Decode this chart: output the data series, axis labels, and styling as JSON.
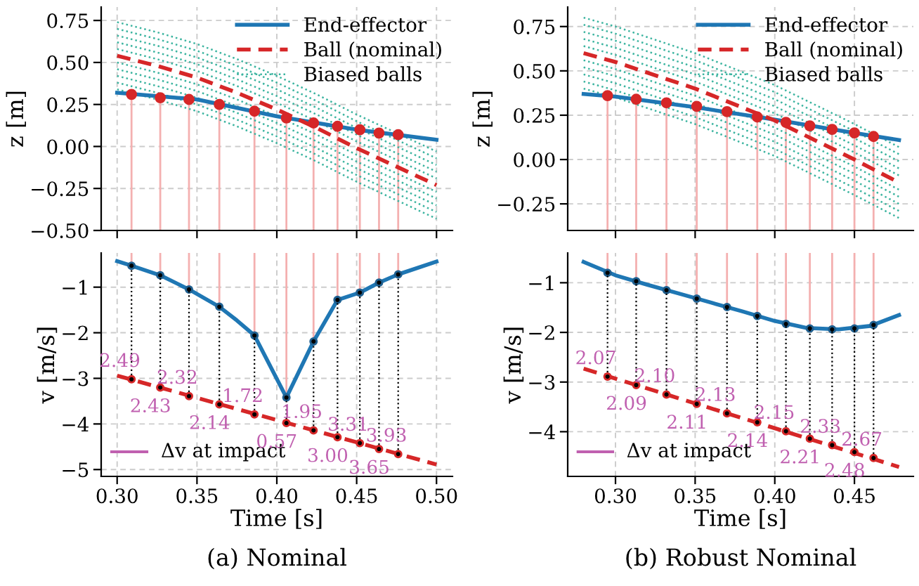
{
  "chart_data": [
    {
      "type": "line",
      "ylabel": "z [m]",
      "xlim": [
        0.29,
        0.51
      ],
      "ylim": [
        -0.5,
        0.83
      ],
      "xticks": [
        0.3,
        0.35,
        0.4,
        0.45,
        0.5
      ],
      "yticks": [
        {
          "value": -0.5,
          "label": "−0.50"
        },
        {
          "value": -0.25,
          "label": "−0.25"
        },
        {
          "value": 0,
          "label": "0.00"
        },
        {
          "value": 0.25,
          "label": "0.25"
        },
        {
          "value": 0.5,
          "label": "0.50"
        },
        {
          "value": 0.75,
          "label": "0.75"
        }
      ],
      "grid": true,
      "legend": "top right",
      "tick_labels": "y",
      "series": [
        {
          "name": "End-effector",
          "color": "#1f77b4",
          "line_style": "solid",
          "x": [
            0.3,
            0.35,
            0.4,
            0.45,
            0.5
          ],
          "values": [
            0.32,
            0.28,
            0.18,
            0.1,
            0.04
          ]
        },
        {
          "name": "Ball (nominal)",
          "color": "#d62728",
          "line_style": "dashed",
          "x": [
            0.3,
            0.325,
            0.35,
            0.375,
            0.4,
            0.425,
            0.45,
            0.475,
            0.5
          ],
          "values": [
            0.54,
            0.48,
            0.41,
            0.32,
            0.22,
            0.11,
            -0.01,
            -0.12,
            -0.23
          ]
        },
        {
          "name": "Biased balls",
          "color": "#3cb4a0",
          "line_style": "dotted",
          "x": [
            0.3,
            0.325,
            0.35,
            0.375,
            0.4,
            0.425,
            0.45,
            0.475,
            0.5
          ],
          "values": [
            0.74,
            0.68,
            0.61,
            0.52,
            0.42,
            0.31,
            0.19,
            0.08,
            -0.03
          ]
        },
        {
          "color": "#3cb4a0",
          "line_style": "dotted",
          "x": [
            0.3,
            0.325,
            0.35,
            0.375,
            0.4,
            0.425,
            0.45,
            0.475,
            0.5
          ],
          "values": [
            0.7,
            0.64,
            0.57,
            0.48,
            0.38,
            0.27,
            0.15,
            0.04,
            -0.07
          ]
        },
        {
          "color": "#3cb4a0",
          "line_style": "dotted",
          "x": [
            0.3,
            0.325,
            0.35,
            0.375,
            0.4,
            0.425,
            0.45,
            0.475,
            0.5
          ],
          "values": [
            0.66,
            0.6,
            0.53,
            0.44,
            0.34,
            0.23,
            0.11,
            0.0,
            -0.11
          ]
        },
        {
          "color": "#3cb4a0",
          "line_style": "dotted",
          "x": [
            0.3,
            0.325,
            0.35,
            0.375,
            0.4,
            0.425,
            0.45,
            0.475,
            0.5
          ],
          "values": [
            0.62,
            0.56,
            0.49,
            0.4,
            0.3,
            0.19,
            0.07,
            -0.04,
            -0.15
          ]
        },
        {
          "color": "#3cb4a0",
          "line_style": "dotted",
          "x": [
            0.3,
            0.325,
            0.35,
            0.375,
            0.4,
            0.425,
            0.45,
            0.475,
            0.5
          ],
          "values": [
            0.58,
            0.52,
            0.45,
            0.36,
            0.26,
            0.15,
            0.03,
            -0.08,
            -0.19
          ]
        },
        {
          "color": "#3cb4a0",
          "line_style": "dotted",
          "x": [
            0.3,
            0.325,
            0.35,
            0.375,
            0.4,
            0.425,
            0.45,
            0.475,
            0.5
          ],
          "values": [
            0.5,
            0.44,
            0.37,
            0.28,
            0.18,
            0.07,
            -0.05,
            -0.16,
            -0.27
          ]
        },
        {
          "color": "#3cb4a0",
          "line_style": "dotted",
          "x": [
            0.3,
            0.325,
            0.35,
            0.375,
            0.4,
            0.425,
            0.45,
            0.475,
            0.5
          ],
          "values": [
            0.46,
            0.4,
            0.33,
            0.24,
            0.14,
            0.03,
            -0.09,
            -0.2,
            -0.31
          ]
        },
        {
          "color": "#3cb4a0",
          "line_style": "dotted",
          "x": [
            0.3,
            0.325,
            0.35,
            0.375,
            0.4,
            0.425,
            0.45,
            0.475,
            0.5
          ],
          "values": [
            0.42,
            0.36,
            0.29,
            0.2,
            0.1,
            -0.01,
            -0.13,
            -0.24,
            -0.35
          ]
        },
        {
          "color": "#3cb4a0",
          "line_style": "dotted",
          "x": [
            0.3,
            0.325,
            0.35,
            0.375,
            0.4,
            0.425,
            0.45,
            0.475,
            0.5
          ],
          "values": [
            0.38,
            0.32,
            0.25,
            0.16,
            0.06,
            -0.05,
            -0.17,
            -0.28,
            -0.39
          ]
        },
        {
          "color": "#3cb4a0",
          "line_style": "dotted",
          "x": [
            0.3,
            0.325,
            0.35,
            0.375,
            0.4,
            0.425,
            0.45,
            0.475,
            0.5
          ],
          "values": [
            0.34,
            0.28,
            0.21,
            0.12,
            0.02,
            -0.09,
            -0.21,
            -0.32,
            -0.43
          ]
        },
        {
          "type": "scatter",
          "color": "#d62728",
          "marker": "circle",
          "x": [
            0.309,
            0.327,
            0.345,
            0.364,
            0.386,
            0.406,
            0.423,
            0.438,
            0.452,
            0.464,
            0.476
          ],
          "values": [
            0.31,
            0.29,
            0.28,
            0.25,
            0.21,
            0.17,
            0.14,
            0.12,
            0.1,
            0.08,
            0.07
          ],
          "errors": [
            [
              -0.5,
              0.31
            ],
            [
              -0.5,
              0.29
            ],
            [
              -0.5,
              0.28
            ],
            [
              -0.5,
              0.25
            ],
            [
              -0.5,
              0.21
            ],
            [
              -0.5,
              0.17
            ],
            [
              -0.5,
              0.14
            ],
            [
              -0.5,
              0.12
            ],
            [
              -0.5,
              0.1
            ],
            [
              -0.5,
              0.08
            ],
            [
              -0.5,
              0.07
            ]
          ]
        }
      ]
    },
    {
      "type": "line",
      "ylabel": "z [m]",
      "xlim": [
        0.27,
        0.487
      ],
      "ylim": [
        -0.4,
        0.86
      ],
      "xticks": [
        0.3,
        0.35,
        0.4,
        0.45
      ],
      "yticks": [
        {
          "value": -0.25,
          "label": "−0.25"
        },
        {
          "value": 0,
          "label": "0.00"
        },
        {
          "value": 0.25,
          "label": "0.25"
        },
        {
          "value": 0.5,
          "label": "0.50"
        },
        {
          "value": 0.75,
          "label": "0.75"
        }
      ],
      "grid": true,
      "legend": "top right",
      "tick_labels": "y",
      "series": [
        {
          "name": "End-effector",
          "color": "#1f77b4",
          "line_style": "solid",
          "x": [
            0.28,
            0.3,
            0.35,
            0.4,
            0.45,
            0.478
          ],
          "values": [
            0.37,
            0.355,
            0.295,
            0.225,
            0.15,
            0.11
          ]
        },
        {
          "name": "Ball (nominal)",
          "color": "#d62728",
          "line_style": "dashed",
          "x": [
            0.28,
            0.3,
            0.35,
            0.4,
            0.45,
            0.478
          ],
          "values": [
            0.6,
            0.55,
            0.4,
            0.22,
            0.0,
            -0.13
          ]
        },
        {
          "name": "Biased balls",
          "color": "#3cb4a0",
          "line_style": "dotted",
          "x": [
            0.28,
            0.3,
            0.35,
            0.4,
            0.45,
            0.478
          ],
          "values": [
            0.8,
            0.75,
            0.6,
            0.42,
            0.2,
            0.07
          ]
        },
        {
          "color": "#3cb4a0",
          "line_style": "dotted",
          "x": [
            0.28,
            0.3,
            0.35,
            0.4,
            0.45,
            0.478
          ],
          "values": [
            0.76,
            0.71,
            0.56,
            0.38,
            0.16,
            0.03
          ]
        },
        {
          "color": "#3cb4a0",
          "line_style": "dotted",
          "x": [
            0.28,
            0.3,
            0.35,
            0.4,
            0.45,
            0.478
          ],
          "values": [
            0.72,
            0.67,
            0.52,
            0.34,
            0.12,
            -0.01
          ]
        },
        {
          "color": "#3cb4a0",
          "line_style": "dotted",
          "x": [
            0.28,
            0.3,
            0.35,
            0.4,
            0.45,
            0.478
          ],
          "values": [
            0.68,
            0.63,
            0.48,
            0.3,
            0.08,
            -0.05
          ]
        },
        {
          "color": "#3cb4a0",
          "line_style": "dotted",
          "x": [
            0.28,
            0.3,
            0.35,
            0.4,
            0.45,
            0.478
          ],
          "values": [
            0.64,
            0.59,
            0.44,
            0.26,
            0.04,
            -0.09
          ]
        },
        {
          "color": "#3cb4a0",
          "line_style": "dotted",
          "x": [
            0.28,
            0.3,
            0.35,
            0.4,
            0.45,
            0.478
          ],
          "values": [
            0.56,
            0.51,
            0.36,
            0.18,
            -0.04,
            -0.17
          ]
        },
        {
          "color": "#3cb4a0",
          "line_style": "dotted",
          "x": [
            0.28,
            0.3,
            0.35,
            0.4,
            0.45,
            0.478
          ],
          "values": [
            0.52,
            0.47,
            0.32,
            0.14,
            -0.08,
            -0.21
          ]
        },
        {
          "color": "#3cb4a0",
          "line_style": "dotted",
          "x": [
            0.28,
            0.3,
            0.35,
            0.4,
            0.45,
            0.478
          ],
          "values": [
            0.48,
            0.43,
            0.28,
            0.1,
            -0.12,
            -0.25
          ]
        },
        {
          "color": "#3cb4a0",
          "line_style": "dotted",
          "x": [
            0.28,
            0.3,
            0.35,
            0.4,
            0.45,
            0.478
          ],
          "values": [
            0.44,
            0.39,
            0.24,
            0.06,
            -0.16,
            -0.29
          ]
        },
        {
          "color": "#3cb4a0",
          "line_style": "dotted",
          "x": [
            0.28,
            0.3,
            0.35,
            0.4,
            0.45,
            0.478
          ],
          "values": [
            0.4,
            0.35,
            0.2,
            0.02,
            -0.2,
            -0.33
          ]
        },
        {
          "type": "scatter",
          "color": "#d62728",
          "marker": "circle",
          "x": [
            0.295,
            0.313,
            0.332,
            0.351,
            0.37,
            0.389,
            0.407,
            0.422,
            0.436,
            0.45,
            0.462
          ],
          "values": [
            0.36,
            0.34,
            0.32,
            0.3,
            0.27,
            0.24,
            0.21,
            0.19,
            0.17,
            0.15,
            0.13
          ],
          "errors": [
            [
              -0.4,
              0.36
            ],
            [
              -0.4,
              0.34
            ],
            [
              -0.4,
              0.32
            ],
            [
              -0.4,
              0.3
            ],
            [
              -0.4,
              0.27
            ],
            [
              -0.4,
              0.24
            ],
            [
              -0.4,
              0.21
            ],
            [
              -0.4,
              0.19
            ],
            [
              -0.4,
              0.17
            ],
            [
              -0.4,
              0.15
            ],
            [
              -0.4,
              0.13
            ]
          ]
        }
      ]
    },
    {
      "type": "line",
      "xlabel": "Time [s]",
      "ylabel": "v [m/s]",
      "xlim": [
        0.29,
        0.51
      ],
      "ylim": [
        -5.15,
        -0.25
      ],
      "xticks": [
        {
          "value": 0.3,
          "label": "0.30"
        },
        {
          "value": 0.35,
          "label": "0.35"
        },
        {
          "value": 0.4,
          "label": "0.40"
        },
        {
          "value": 0.45,
          "label": "0.45"
        },
        {
          "value": 0.5,
          "label": "0.50"
        }
      ],
      "yticks": [
        {
          "value": -5,
          "label": "−5"
        },
        {
          "value": -4,
          "label": "−4"
        },
        {
          "value": -3,
          "label": "−3"
        },
        {
          "value": -2,
          "label": "−2"
        },
        {
          "value": -1,
          "label": "−1"
        }
      ],
      "grid": true,
      "annotations": [
        "(a) Nominal",
        "Δv at impact",
        {
          "text": "2.49",
          "x": 0.309,
          "y": -3.02
        },
        {
          "text": "2.43",
          "x": 0.327,
          "y": -3.2
        },
        {
          "text": "2.32",
          "x": 0.345,
          "y": -3.39
        },
        {
          "text": "2.14",
          "x": 0.364,
          "y": -3.57
        },
        {
          "text": "1.72",
          "x": 0.386,
          "y": -3.79
        },
        {
          "text": "0.57",
          "x": 0.406,
          "y": -3.98
        },
        {
          "text": "1.95",
          "x": 0.423,
          "y": -4.14
        },
        {
          "text": "3.00",
          "x": 0.438,
          "y": -4.29
        },
        {
          "text": "3.31",
          "x": 0.452,
          "y": -4.42
        },
        {
          "text": "3.65",
          "x": 0.464,
          "y": -4.55
        },
        {
          "text": "3.93",
          "x": 0.476,
          "y": -4.66
        }
      ],
      "series": [
        {
          "color": "#1f77b4",
          "line_style": "solid",
          "x": [
            0.3,
            0.309,
            0.327,
            0.345,
            0.364,
            0.375,
            0.386,
            0.406,
            0.423,
            0.438,
            0.452,
            0.464,
            0.476,
            0.5
          ],
          "values": [
            -0.43,
            -0.53,
            -0.74,
            -1.05,
            -1.43,
            -1.73,
            -2.06,
            -3.42,
            -2.19,
            -1.28,
            -1.12,
            -0.9,
            -0.72,
            -0.44
          ]
        },
        {
          "color": "#d62728",
          "line_style": "dashed",
          "x": [
            0.3,
            0.5
          ],
          "values": [
            -2.94,
            -4.89
          ]
        },
        {
          "type": "scatter",
          "color": "#1f5f8f",
          "marker": "circle",
          "x": [
            0.309,
            0.327,
            0.345,
            0.364,
            0.386,
            0.406,
            0.423,
            0.438,
            0.452,
            0.464,
            0.476
          ],
          "values": [
            -0.53,
            -0.74,
            -1.05,
            -1.43,
            -2.06,
            -3.42,
            -2.19,
            -1.28,
            -1.12,
            -0.9,
            -0.72
          ],
          "errors": [
            [
              -0.53,
              -0.25
            ],
            [
              -0.74,
              -0.25
            ],
            [
              -1.05,
              -0.25
            ],
            [
              -1.43,
              -0.25
            ],
            [
              -2.06,
              -0.25
            ],
            [
              -3.42,
              -0.25
            ],
            [
              -2.19,
              -0.25
            ],
            [
              -1.28,
              -0.25
            ],
            [
              -1.12,
              -0.25
            ],
            [
              -0.9,
              -0.25
            ],
            [
              -0.72,
              -0.25
            ]
          ]
        },
        {
          "type": "scatter",
          "color": "#d62728",
          "marker": "circle",
          "x": [
            0.309,
            0.327,
            0.345,
            0.364,
            0.386,
            0.406,
            0.423,
            0.438,
            0.452,
            0.464,
            0.476
          ],
          "values": [
            -3.02,
            -3.2,
            -3.39,
            -3.57,
            -3.79,
            -3.98,
            -4.14,
            -4.29,
            -4.42,
            -4.55,
            -4.66
          ],
          "errors": [
            [
              -3.02,
              -0.53
            ],
            [
              -3.2,
              -0.74
            ],
            [
              -3.39,
              -1.05
            ],
            [
              -3.57,
              -1.43
            ],
            [
              -3.79,
              -2.06
            ],
            [
              -3.98,
              -3.42
            ],
            [
              -4.14,
              -2.19
            ],
            [
              -4.29,
              -1.28
            ],
            [
              -4.42,
              -1.12
            ],
            [
              -4.55,
              -0.9
            ],
            [
              -4.66,
              -0.72
            ]
          ]
        }
      ]
    },
    {
      "type": "line",
      "xlabel": "Time [s]",
      "ylabel": "v [m/s]",
      "xlim": [
        0.27,
        0.487
      ],
      "ylim": [
        -4.9,
        -0.4
      ],
      "xticks": [
        {
          "value": 0.3,
          "label": "0.30"
        },
        {
          "value": 0.35,
          "label": "0.35"
        },
        {
          "value": 0.4,
          "label": "0.40"
        },
        {
          "value": 0.45,
          "label": "0.45"
        }
      ],
      "yticks": [
        {
          "value": -4,
          "label": "−4"
        },
        {
          "value": -3,
          "label": "−3"
        },
        {
          "value": -2,
          "label": "−2"
        },
        {
          "value": -1,
          "label": "−1"
        }
      ],
      "grid": true,
      "annotations": [
        "(b) Robust Nominal",
        "Δv at impact",
        {
          "text": "2.07",
          "x": 0.295,
          "y": -2.89
        },
        {
          "text": "2.09",
          "x": 0.313,
          "y": -3.06
        },
        {
          "text": "2.10",
          "x": 0.332,
          "y": -3.25
        },
        {
          "text": "2.11",
          "x": 0.351,
          "y": -3.44
        },
        {
          "text": "2.13",
          "x": 0.37,
          "y": -3.63
        },
        {
          "text": "2.14",
          "x": 0.389,
          "y": -3.81
        },
        {
          "text": "2.15",
          "x": 0.407,
          "y": -3.99
        },
        {
          "text": "2.21",
          "x": 0.422,
          "y": -4.14
        },
        {
          "text": "2.33",
          "x": 0.436,
          "y": -4.27
        },
        {
          "text": "2.48",
          "x": 0.45,
          "y": -4.41
        },
        {
          "text": "2.67",
          "x": 0.462,
          "y": -4.53
        }
      ],
      "series": [
        {
          "color": "#1f77b4",
          "line_style": "solid",
          "x": [
            0.28,
            0.3,
            0.32,
            0.34,
            0.36,
            0.38,
            0.4,
            0.42,
            0.44,
            0.46,
            0.478
          ],
          "values": [
            -0.58,
            -0.85,
            -1.04,
            -1.22,
            -1.4,
            -1.58,
            -1.77,
            -1.91,
            -1.94,
            -1.87,
            -1.65
          ]
        },
        {
          "color": "#d62728",
          "line_style": "dashed",
          "x": [
            0.28,
            0.478
          ],
          "values": [
            -2.73,
            -4.71
          ]
        },
        {
          "type": "scatter",
          "color": "#1f5f8f",
          "marker": "circle",
          "x": [
            0.295,
            0.313,
            0.332,
            0.351,
            0.37,
            0.389,
            0.407,
            0.422,
            0.436,
            0.45,
            0.462
          ],
          "values": [
            -0.8,
            -0.97,
            -1.15,
            -1.32,
            -1.49,
            -1.67,
            -1.83,
            -1.92,
            -1.94,
            -1.92,
            -1.85
          ],
          "errors": [
            [
              -0.8,
              -0.4
            ],
            [
              -0.97,
              -0.4
            ],
            [
              -1.15,
              -0.4
            ],
            [
              -1.32,
              -0.4
            ],
            [
              -1.49,
              -0.4
            ],
            [
              -1.67,
              -0.4
            ],
            [
              -1.83,
              -0.4
            ],
            [
              -1.92,
              -0.4
            ],
            [
              -1.94,
              -0.4
            ],
            [
              -1.92,
              -0.4
            ],
            [
              -1.85,
              -0.4
            ]
          ]
        },
        {
          "type": "scatter",
          "color": "#d62728",
          "marker": "circle",
          "x": [
            0.295,
            0.313,
            0.332,
            0.351,
            0.37,
            0.389,
            0.407,
            0.422,
            0.436,
            0.45,
            0.462
          ],
          "values": [
            -2.89,
            -3.06,
            -3.25,
            -3.44,
            -3.63,
            -3.81,
            -3.99,
            -4.14,
            -4.27,
            -4.41,
            -4.53
          ],
          "errors": [
            [
              -2.89,
              -0.8
            ],
            [
              -3.06,
              -0.97
            ],
            [
              -3.25,
              -1.15
            ],
            [
              -3.44,
              -1.32
            ],
            [
              -3.63,
              -1.49
            ],
            [
              -3.81,
              -1.67
            ],
            [
              -3.99,
              -1.83
            ],
            [
              -4.14,
              -1.92
            ],
            [
              -4.27,
              -1.94
            ],
            [
              -4.41,
              -1.92
            ],
            [
              -4.53,
              -1.85
            ]
          ]
        }
      ]
    }
  ]
}
